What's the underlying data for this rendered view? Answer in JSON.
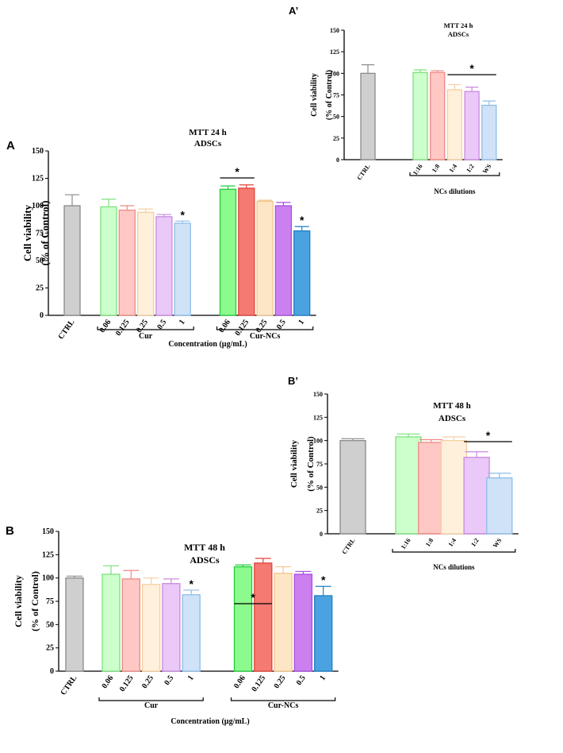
{
  "chart_data": [
    {
      "id": "A",
      "type": "bar",
      "panel_label": "A",
      "title": "MTT 24 h",
      "subtitle": "ADSCs",
      "ylabel": "Cell viability",
      "ylabel2": "(% of Control)",
      "xlabel": "Concentration (µg/mL)",
      "ylim": [
        0,
        150
      ],
      "yticks": [
        "0",
        "25",
        "50",
        "75",
        "100",
        "125",
        "150"
      ],
      "groups": [
        {
          "label": "Cur",
          "from": 1,
          "to": 5
        },
        {
          "label": "Cur-NCs",
          "from": 6,
          "to": 10
        }
      ],
      "bars": [
        {
          "label": "CTRL",
          "value": 100,
          "err": 10,
          "color": "gray",
          "star": false
        },
        {
          "label": "0.06",
          "value": 99,
          "err": 7,
          "color": "green_l",
          "star": false
        },
        {
          "label": "0.125",
          "value": 96,
          "err": 4,
          "color": "red_l",
          "star": false
        },
        {
          "label": "0.25",
          "value": 94,
          "err": 3,
          "color": "orange_l",
          "star": false
        },
        {
          "label": "0.5",
          "value": 90,
          "err": 2,
          "color": "purple_l",
          "star": false
        },
        {
          "label": "1",
          "value": 84,
          "err": 2,
          "color": "blue_l",
          "star": true
        },
        {
          "label": "0.06",
          "value": 115,
          "err": 3,
          "color": "green_d",
          "star": false
        },
        {
          "label": "0.125",
          "value": 116,
          "err": 3,
          "color": "red_d",
          "star": false
        },
        {
          "label": "0.25",
          "value": 104,
          "err": 1,
          "color": "orange_m",
          "star": false
        },
        {
          "label": "0.5",
          "value": 100,
          "err": 3,
          "color": "purple_d",
          "star": false
        },
        {
          "label": "1",
          "value": 77,
          "err": 4,
          "color": "blue_d",
          "star": true
        }
      ],
      "sig_line": {
        "from": 6,
        "to": 7,
        "label": "*"
      }
    },
    {
      "id": "A2",
      "type": "bar",
      "panel_label": "A’",
      "title": "MTT 24 h",
      "subtitle": "ADSCs",
      "ylabel": "Cell viability",
      "ylabel2": "(% of Control)",
      "xlabel": "",
      "ylim": [
        0,
        150
      ],
      "yticks": [
        "0",
        "25",
        "50",
        "75",
        "100",
        "125",
        "150"
      ],
      "groups": [
        {
          "label": "NCs dilutions",
          "from": 1,
          "to": 5
        }
      ],
      "bars": [
        {
          "label": "CTRL",
          "value": 100,
          "err": 10,
          "color": "gray",
          "star": false
        },
        {
          "label": "1:16",
          "value": 101,
          "err": 3,
          "color": "green_l",
          "star": false
        },
        {
          "label": "1:8",
          "value": 101,
          "err": 2,
          "color": "red_l",
          "star": false
        },
        {
          "label": "1:4",
          "value": 81,
          "err": 6,
          "color": "orange_l",
          "star": false
        },
        {
          "label": "1:2",
          "value": 79,
          "err": 5,
          "color": "purple_l",
          "star": false
        },
        {
          "label": "WS",
          "value": 63,
          "err": 5,
          "color": "blue_l",
          "star": false
        }
      ],
      "sig_line": {
        "from": 3,
        "to": 5,
        "label": "*"
      }
    },
    {
      "id": "B",
      "type": "bar",
      "panel_label": "B",
      "title": "MTT 48 h",
      "subtitle": "ADSCs",
      "ylabel": "Cell viability",
      "ylabel2": "(% of Control)",
      "xlabel": "Concentration (µg/mL)",
      "ylim": [
        0,
        150
      ],
      "yticks": [
        "0",
        "25",
        "50",
        "75",
        "100",
        "125",
        "150"
      ],
      "groups": [
        {
          "label": "Cur",
          "from": 1,
          "to": 5
        },
        {
          "label": "Cur-NCs",
          "from": 6,
          "to": 10
        }
      ],
      "bars": [
        {
          "label": "CTRL",
          "value": 100,
          "err": 2,
          "color": "gray",
          "star": false
        },
        {
          "label": "0.06",
          "value": 104,
          "err": 9,
          "color": "green_l",
          "star": false
        },
        {
          "label": "0.125",
          "value": 99,
          "err": 9,
          "color": "red_l",
          "star": false
        },
        {
          "label": "0.25",
          "value": 93,
          "err": 7,
          "color": "orange_l",
          "star": false
        },
        {
          "label": "0.5",
          "value": 94,
          "err": 5,
          "color": "purple_l",
          "star": false
        },
        {
          "label": "1",
          "value": 82,
          "err": 5,
          "color": "blue_l",
          "star": true
        },
        {
          "label": "0.06",
          "value": 112,
          "err": 2,
          "color": "green_d",
          "star": false
        },
        {
          "label": "0.125",
          "value": 116,
          "err": 5,
          "color": "red_d",
          "star": false
        },
        {
          "label": "0.25",
          "value": 105,
          "err": 7,
          "color": "orange_m",
          "star": false
        },
        {
          "label": "0.5",
          "value": 104,
          "err": 3,
          "color": "purple_d",
          "star": false
        },
        {
          "label": "1",
          "value": 81,
          "err": 10,
          "color": "blue_d",
          "star": true
        }
      ],
      "sig_line": {
        "from": 6,
        "to": 7,
        "label": "*"
      }
    },
    {
      "id": "B2",
      "type": "bar",
      "panel_label": "B’",
      "title": "MTT 48 h",
      "subtitle": "ADSCs",
      "ylabel": "Cell viability",
      "ylabel2": "(% of Control)",
      "xlabel": "",
      "ylim": [
        0,
        150
      ],
      "yticks": [
        "0",
        "25",
        "50",
        "75",
        "100",
        "125",
        "150"
      ],
      "groups": [
        {
          "label": "NCs dilutions",
          "from": 1,
          "to": 5
        }
      ],
      "bars": [
        {
          "label": "CTRL",
          "value": 100,
          "err": 2,
          "color": "gray",
          "star": false
        },
        {
          "label": "1:16",
          "value": 104,
          "err": 3,
          "color": "green_l",
          "star": false
        },
        {
          "label": "1:8",
          "value": 98,
          "err": 3,
          "color": "red_l",
          "star": false
        },
        {
          "label": "1:4",
          "value": 100,
          "err": 4,
          "color": "orange_l",
          "star": false
        },
        {
          "label": "1:2",
          "value": 82,
          "err": 6,
          "color": "purple_l",
          "star": false
        },
        {
          "label": "WS",
          "value": 60,
          "err": 5,
          "color": "blue_l",
          "star": false
        }
      ],
      "sig_line": {
        "from": 4,
        "to": 5,
        "label": "*"
      }
    }
  ],
  "palette": {
    "gray": {
      "fill": "#cfcfcf",
      "stroke": "#8a8a8a"
    },
    "green_l": {
      "fill": "#ccffcc",
      "stroke": "#7ee07e"
    },
    "red_l": {
      "fill": "#ffc8c4",
      "stroke": "#ee8a84"
    },
    "orange_l": {
      "fill": "#fff0dc",
      "stroke": "#f5cfa0"
    },
    "purple_l": {
      "fill": "#eac8f7",
      "stroke": "#c88ae2"
    },
    "blue_l": {
      "fill": "#cfe2f7",
      "stroke": "#8ebde8"
    },
    "green_d": {
      "fill": "#8dfa8d",
      "stroke": "#1fcf3c"
    },
    "red_d": {
      "fill": "#f47a72",
      "stroke": "#e0443a"
    },
    "orange_m": {
      "fill": "#fde6c6",
      "stroke": "#f3c58c"
    },
    "purple_d": {
      "fill": "#cc80f0",
      "stroke": "#a94ee0"
    },
    "blue_d": {
      "fill": "#4aa3e0",
      "stroke": "#1f7fc4"
    }
  }
}
